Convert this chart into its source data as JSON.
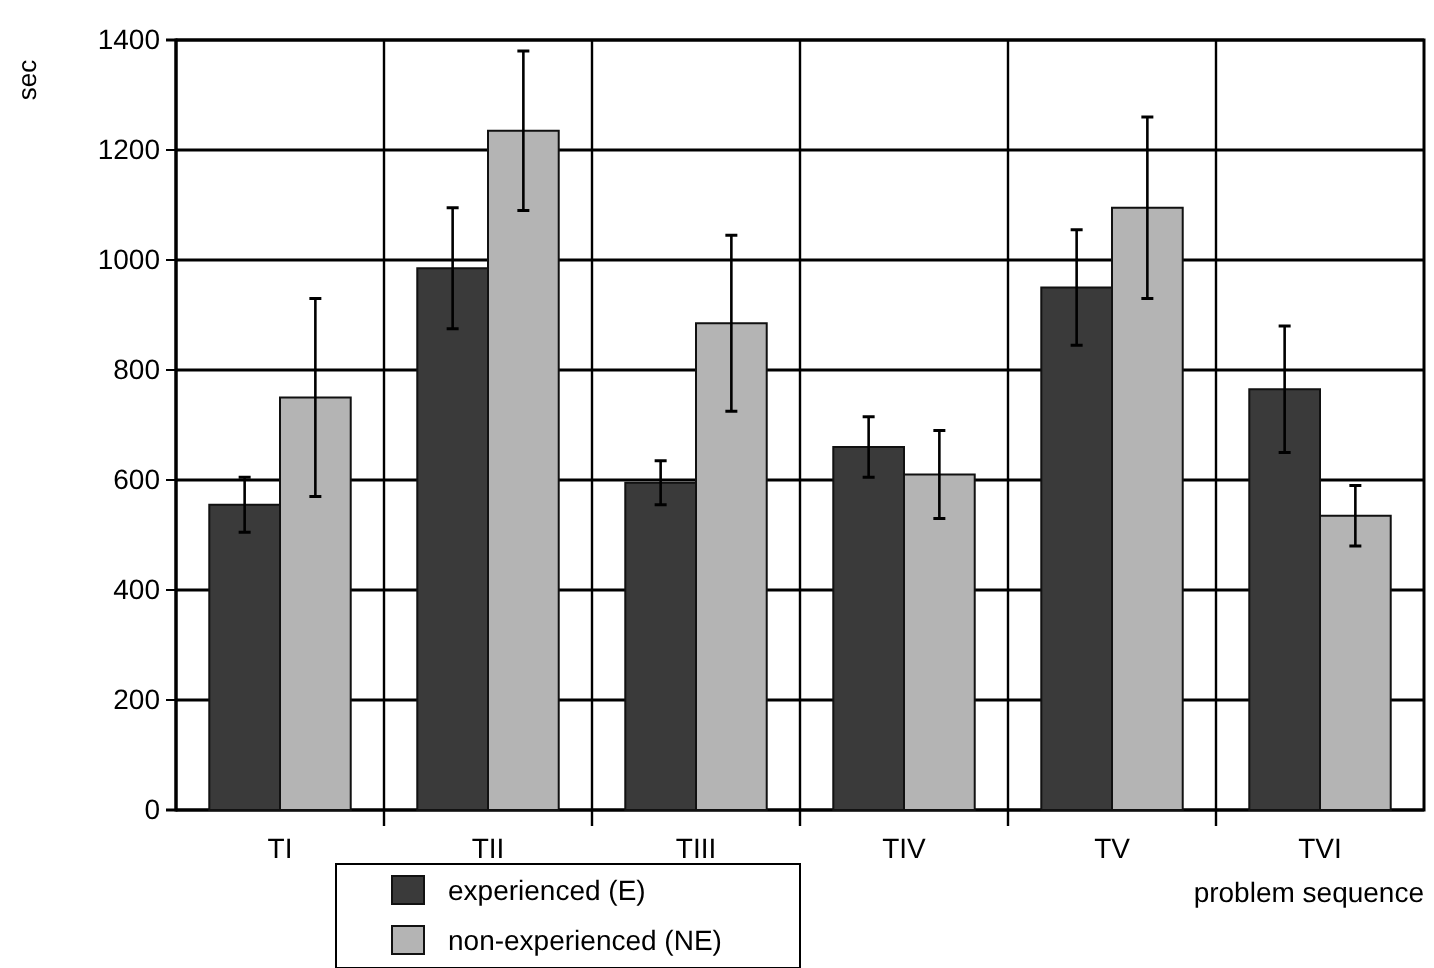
{
  "chart_data": {
    "type": "bar",
    "xlabel": "problem sequence",
    "ylabel": "sec",
    "categories": [
      "TI",
      "TII",
      "TIII",
      "TIV",
      "TV",
      "TVI"
    ],
    "series": [
      {
        "name": "experienced  (E)",
        "color": "#3a3a3a",
        "values": [
          555,
          985,
          595,
          660,
          950,
          765
        ],
        "errors": [
          50,
          110,
          40,
          55,
          105,
          115
        ]
      },
      {
        "name": "non-experienced (NE)",
        "color": "#b4b4b4",
        "values": [
          750,
          1235,
          885,
          610,
          1095,
          535
        ],
        "errors": [
          180,
          145,
          160,
          80,
          165,
          55
        ]
      }
    ],
    "ylim": [
      0,
      1400
    ],
    "yticks": [
      0,
      200,
      400,
      600,
      800,
      1000,
      1200,
      1400
    ],
    "grid": true,
    "legend": "bottom"
  }
}
